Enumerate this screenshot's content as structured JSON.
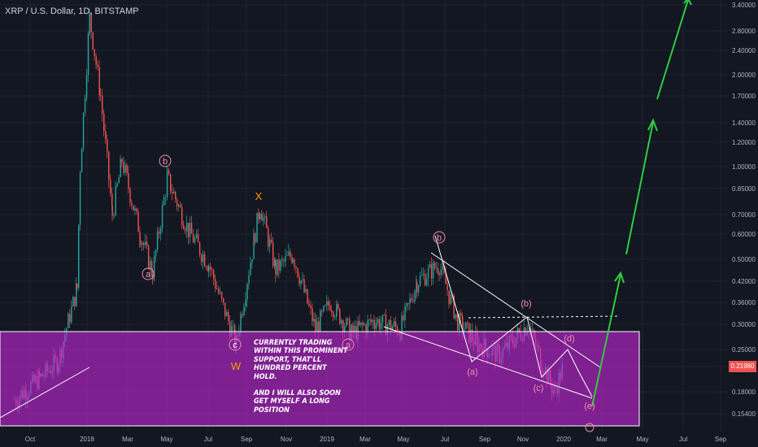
{
  "header": {
    "title": "XRP / U.S. Dollar, 1D, BITSTAMP"
  },
  "price_tag": {
    "value": "0.21980",
    "color": "#ef5350"
  },
  "annotation": {
    "line1": "CURRENTLY TRADING WITHIN THIS PROMINENT SUPPORT, THAT'LL HUNDRED PERCENT HOLD.",
    "line2": "AND I WILL ALSO SOON GET MYSELF A LONG POSITION"
  },
  "wave_labels": {
    "a": "a",
    "b": "b",
    "c": "c",
    "W": "W",
    "X": "X",
    "pa": "(a)",
    "pb": "(b)",
    "pc": "(c)",
    "pd": "(d)",
    "pe": "(e)"
  },
  "colors": {
    "background": "#131722",
    "grid": "#1f2330",
    "support_zone": "#c026d3",
    "bull": "#26a69a",
    "bear": "#ef5350",
    "arrow": "#2ecc40",
    "wave_text": "#f48fb1",
    "label_orange": "#ff9800"
  },
  "chart_data": {
    "type": "line",
    "title": "XRP / U.S. Dollar, 1D, BITSTAMP",
    "x_labels": [
      "Oct",
      "2018",
      "Mar",
      "May",
      "Jul",
      "Sep",
      "Nov",
      "2019",
      "Mar",
      "May",
      "Jul",
      "Sep",
      "Nov",
      "2020",
      "Mar",
      "May",
      "Jul",
      "Sep"
    ],
    "y_labels": [
      "3.40000",
      "2.80000",
      "2.40000",
      "2.00000",
      "1.70000",
      "1.40000",
      "1.20000",
      "1.00000",
      "0.85000",
      "0.70000",
      "0.60000",
      "0.50000",
      "0.42000",
      "0.36000",
      "0.30000",
      "0.25000",
      "0.21980",
      "0.18000",
      "0.15400"
    ],
    "price_path": [
      [
        "2017-09",
        0.17
      ],
      [
        "2017-10",
        0.2
      ],
      [
        "2017-11",
        0.23
      ],
      [
        "2017-12",
        0.4
      ],
      [
        "2017-12-20",
        1.0
      ],
      [
        "2018-01-04",
        3.1
      ],
      [
        "2018-01-20",
        1.7
      ],
      [
        "2018-02-06",
        0.7
      ],
      [
        "2018-02-20",
        1.05
      ],
      [
        "2018-03-20",
        0.6
      ],
      [
        "2018-04-08",
        0.45
      ],
      [
        "2018-05-01",
        0.92
      ],
      [
        "2018-06-01",
        0.62
      ],
      [
        "2018-07-01",
        0.48
      ],
      [
        "2018-08-14",
        0.26
      ],
      [
        "2018-09-21",
        0.75
      ],
      [
        "2018-10-15",
        0.46
      ],
      [
        "2018-11-10",
        0.52
      ],
      [
        "2018-12-14",
        0.29
      ],
      [
        "2019-01-05",
        0.36
      ],
      [
        "2019-02-07",
        0.28
      ],
      [
        "2019-03-15",
        0.31
      ],
      [
        "2019-04-25",
        0.29
      ],
      [
        "2019-05-20",
        0.42
      ],
      [
        "2019-06-22",
        0.48
      ],
      [
        "2019-07-20",
        0.31
      ],
      [
        "2019-08-20",
        0.26
      ],
      [
        "2019-09-24",
        0.24
      ],
      [
        "2019-11-07",
        0.3
      ],
      [
        "2019-12-17",
        0.18
      ],
      [
        "2019-12-31",
        0.2198
      ]
    ],
    "support_zone": {
      "from": 0.155,
      "to": 0.29
    },
    "projections": [
      {
        "from": [
          "2020-02",
          0.18
        ],
        "to": [
          "2020-04",
          0.42
        ]
      },
      {
        "from": [
          "2020-04",
          0.52
        ],
        "to": [
          "2020-05",
          1.4
        ]
      },
      {
        "from": [
          "2020-05",
          1.7
        ],
        "to": [
          "2020-07",
          3.4
        ]
      }
    ]
  }
}
